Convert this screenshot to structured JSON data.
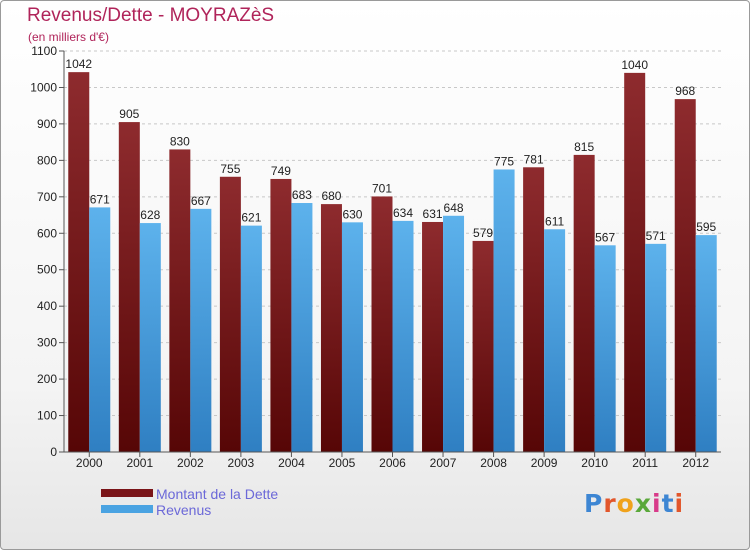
{
  "header": {
    "title": "Revenus/Dette - MOYRAZèS",
    "subtitle": "(en milliers d'€)"
  },
  "legend": {
    "items": [
      {
        "label": "Montant de la Dette",
        "color": "#7a1418"
      },
      {
        "label": "Revenus",
        "color": "#4aa3e2"
      }
    ]
  },
  "logo": {
    "text": "Proxiti",
    "letters": [
      "P",
      "r",
      "o",
      "x",
      "i",
      "t",
      "i"
    ],
    "colors": [
      "#3d86d3",
      "#e2562b",
      "#f0a21b",
      "#5aa83a",
      "#d83b8a",
      "#3d86d3",
      "#e2562b"
    ]
  },
  "chart_data": {
    "type": "bar",
    "categories": [
      "2000",
      "2001",
      "2002",
      "2003",
      "2004",
      "2005",
      "2006",
      "2007",
      "2008",
      "2009",
      "2010",
      "2011",
      "2012"
    ],
    "series": [
      {
        "name": "Montant de la Dette",
        "color": "#7a1418",
        "values": [
          1042,
          905,
          830,
          755,
          749,
          680,
          701,
          631,
          579,
          781,
          815,
          1040,
          968
        ]
      },
      {
        "name": "Revenus",
        "color": "#4aa3e2",
        "values": [
          671,
          628,
          667,
          621,
          683,
          630,
          634,
          648,
          775,
          611,
          567,
          571,
          595
        ]
      }
    ],
    "yticks": [
      0,
      100,
      200,
      300,
      400,
      500,
      600,
      700,
      800,
      900,
      1000,
      1100
    ],
    "ylim": [
      0,
      1100
    ],
    "grid": true,
    "legend_position": "bottom-left"
  }
}
